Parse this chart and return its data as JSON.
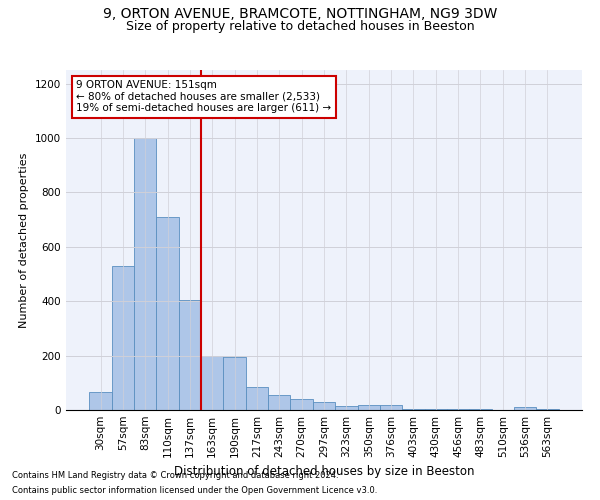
{
  "title1": "9, ORTON AVENUE, BRAMCOTE, NOTTINGHAM, NG9 3DW",
  "title2": "Size of property relative to detached houses in Beeston",
  "xlabel": "Distribution of detached houses by size in Beeston",
  "ylabel": "Number of detached properties",
  "footnote1": "Contains HM Land Registry data © Crown copyright and database right 2024.",
  "footnote2": "Contains public sector information licensed under the Open Government Licence v3.0.",
  "annotation_title": "9 ORTON AVENUE: 151sqm",
  "annotation_line1": "← 80% of detached houses are smaller (2,533)",
  "annotation_line2": "19% of semi-detached houses are larger (611) →",
  "categories": [
    "30sqm",
    "57sqm",
    "83sqm",
    "110sqm",
    "137sqm",
    "163sqm",
    "190sqm",
    "217sqm",
    "243sqm",
    "270sqm",
    "297sqm",
    "323sqm",
    "350sqm",
    "376sqm",
    "403sqm",
    "430sqm",
    "456sqm",
    "483sqm",
    "510sqm",
    "536sqm",
    "563sqm"
  ],
  "values": [
    65,
    530,
    1000,
    710,
    405,
    200,
    195,
    85,
    55,
    42,
    30,
    15,
    20,
    18,
    5,
    5,
    5,
    5,
    0,
    10,
    5
  ],
  "bar_color": "#aec6e8",
  "bar_edge_color": "#5a8fc0",
  "vline_color": "#cc0000",
  "vline_x": 4.5,
  "annotation_box_color": "#cc0000",
  "ylim": [
    0,
    1250
  ],
  "yticks": [
    0,
    200,
    400,
    600,
    800,
    1000,
    1200
  ],
  "grid_color": "#d0d0d8",
  "bg_color": "#eef2fb",
  "title1_fontsize": 10,
  "title2_fontsize": 9,
  "xlabel_fontsize": 8.5,
  "ylabel_fontsize": 8,
  "tick_fontsize": 7.5,
  "annot_fontsize": 7.5,
  "footnote_fontsize": 6
}
